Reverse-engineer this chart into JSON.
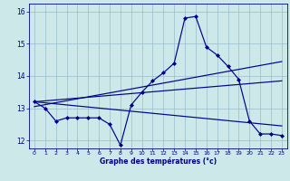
{
  "xlabel": "Graphe des températures (°c)",
  "background_color": "#cce8e8",
  "line_color": "#00008b",
  "grid_color": "#99bbcc",
  "xlim": [
    -0.5,
    23.5
  ],
  "ylim": [
    11.75,
    16.25
  ],
  "yticks": [
    12,
    13,
    14,
    15,
    16
  ],
  "xticks": [
    0,
    1,
    2,
    3,
    4,
    5,
    6,
    7,
    8,
    9,
    10,
    11,
    12,
    13,
    14,
    15,
    16,
    17,
    18,
    19,
    20,
    21,
    22,
    23
  ],
  "series": {
    "temp": {
      "x": [
        0,
        1,
        2,
        3,
        4,
        5,
        6,
        7,
        8,
        9,
        10,
        11,
        12,
        13,
        14,
        15,
        16,
        17,
        18,
        19,
        20,
        21,
        22,
        23
      ],
      "y": [
        13.2,
        13.0,
        12.6,
        12.7,
        12.7,
        12.7,
        12.7,
        12.5,
        11.85,
        13.1,
        13.5,
        13.85,
        14.1,
        14.4,
        15.8,
        15.85,
        14.9,
        14.65,
        14.3,
        13.9,
        12.6,
        12.2,
        12.2,
        12.15
      ]
    },
    "line1": {
      "x": [
        0,
        23
      ],
      "y": [
        13.05,
        14.45
      ]
    },
    "line2": {
      "x": [
        0,
        23
      ],
      "y": [
        13.2,
        13.85
      ]
    },
    "line3": {
      "x": [
        0,
        23
      ],
      "y": [
        13.2,
        12.45
      ]
    }
  }
}
